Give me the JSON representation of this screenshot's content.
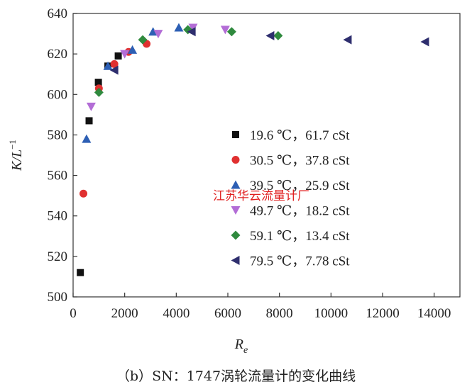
{
  "caption": "（b）SN：1747涡轮流量计的变化曲线",
  "watermark": "江苏华云流量计厂",
  "chart_data": {
    "type": "scatter",
    "xlabel": "R",
    "xlabel_sub": "e",
    "ylabel": "K/L",
    "ylabel_sup": "−1",
    "xlim": [
      0,
      15000
    ],
    "ylim": [
      500,
      640
    ],
    "xticks": [
      0,
      2000,
      4000,
      6000,
      8000,
      10000,
      12000,
      14000
    ],
    "yticks": [
      500,
      520,
      540,
      560,
      580,
      600,
      620,
      640
    ],
    "legend_position": "center-right",
    "series": [
      {
        "name": "19.6 ℃，61.7 cSt",
        "marker": "square",
        "color": "#111111",
        "x": [
          280,
          620,
          980,
          1350,
          1750
        ],
        "y": [
          512,
          587,
          606,
          614,
          619
        ]
      },
      {
        "name": "30.5 ℃，37.8 cSt",
        "marker": "circle",
        "color": "#e03030",
        "x": [
          400,
          1000,
          1600,
          2150,
          2850
        ],
        "y": [
          551,
          603,
          615,
          621,
          625
        ]
      },
      {
        "name": "39.5 ℃，25.9 cSt",
        "marker": "triangle-up",
        "color": "#2d5fb4",
        "x": [
          520,
          1350,
          2300,
          3100,
          4100
        ],
        "y": [
          578,
          614,
          622,
          631,
          633
        ]
      },
      {
        "name": "49.7 ℃，18.2 cSt",
        "marker": "triangle-down",
        "color": "#b36dd6",
        "x": [
          700,
          2000,
          3300,
          4650,
          5900
        ],
        "y": [
          594,
          620,
          630,
          633,
          632
        ]
      },
      {
        "name": "59.1 ℃，13.4 cSt",
        "marker": "diamond",
        "color": "#2f8a3e",
        "x": [
          1000,
          2700,
          4450,
          6150,
          7950
        ],
        "y": [
          601,
          627,
          632,
          631,
          629
        ]
      },
      {
        "name": "79.5 ℃，7.78 cSt",
        "marker": "triangle-left",
        "color": "#2e2e6e",
        "x": [
          1600,
          4600,
          7650,
          10650,
          13650
        ],
        "y": [
          612,
          631,
          629,
          627,
          626
        ]
      }
    ]
  }
}
